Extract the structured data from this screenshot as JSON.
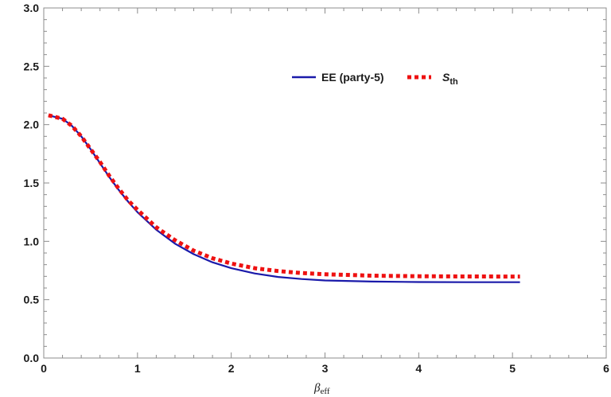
{
  "chart_data": {
    "type": "line",
    "title": "",
    "xlabel": "β",
    "xlabel_sub": "eff",
    "ylabel": "",
    "xlim": [
      0,
      6
    ],
    "ylim": [
      0,
      3
    ],
    "x_ticks": [
      0,
      1,
      2,
      3,
      4,
      5,
      6
    ],
    "x_tick_labels": [
      "0",
      "1",
      "2",
      "3",
      "4",
      "5",
      "6"
    ],
    "y_ticks": [
      0,
      0.5,
      1,
      1.5,
      2,
      2.5,
      3
    ],
    "y_tick_labels": [
      "0.0",
      "0.5",
      "1.0",
      "1.5",
      "2.0",
      "2.5",
      "3.0"
    ],
    "grid": false,
    "legend_position": "top-center",
    "series": [
      {
        "name": "EE (party-5)",
        "style": "solid",
        "color": "#1a1aaa",
        "x": [
          0.05,
          0.2,
          0.3,
          0.4,
          0.5,
          0.6,
          0.7,
          0.8,
          0.9,
          1.0,
          1.2,
          1.4,
          1.6,
          1.8,
          2.0,
          2.25,
          2.5,
          2.75,
          3.0,
          3.5,
          4.0,
          4.5,
          5.0,
          5.08
        ],
        "y": [
          2.08,
          2.05,
          1.99,
          1.9,
          1.79,
          1.67,
          1.55,
          1.44,
          1.34,
          1.25,
          1.1,
          0.98,
          0.89,
          0.82,
          0.77,
          0.725,
          0.695,
          0.677,
          0.665,
          0.655,
          0.651,
          0.65,
          0.65,
          0.65
        ]
      },
      {
        "name": "S",
        "name_sub": "th",
        "style": "dotted",
        "color": "#ee1111",
        "x": [
          0.05,
          0.2,
          0.3,
          0.4,
          0.5,
          0.6,
          0.7,
          0.8,
          0.9,
          1.0,
          1.2,
          1.4,
          1.6,
          1.8,
          2.0,
          2.25,
          2.5,
          2.75,
          3.0,
          3.5,
          4.0,
          4.5,
          5.0,
          5.08
        ],
        "y": [
          2.08,
          2.05,
          1.99,
          1.9,
          1.79,
          1.68,
          1.56,
          1.45,
          1.35,
          1.27,
          1.12,
          1.01,
          0.92,
          0.855,
          0.81,
          0.77,
          0.745,
          0.728,
          0.718,
          0.706,
          0.701,
          0.699,
          0.698,
          0.698
        ]
      }
    ]
  }
}
